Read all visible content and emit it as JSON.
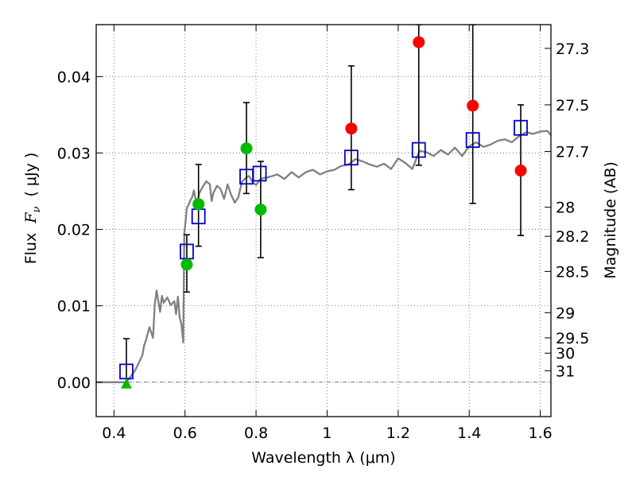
{
  "chart_data": {
    "type": "scatter",
    "xlabel": "Wavelength  λ (μm)",
    "ylabel": "Flux  Fν  ( μJy )",
    "ylabel_parts": {
      "prefix": "Flux  ",
      "symbol": "F",
      "subscript": "ν",
      "suffix": "  ( μJy )"
    },
    "y2label": "Magnitude (AB)",
    "xlim": [
      0.35,
      1.63
    ],
    "ylim": [
      -0.0045,
      0.0468
    ],
    "grid": true,
    "x_ticks": [
      0.4,
      0.6,
      0.8,
      1.0,
      1.2,
      1.4,
      1.6
    ],
    "x_tick_labels": [
      "0.4",
      "0.6",
      "0.8",
      "1",
      "1.2",
      "1.4",
      "1.6"
    ],
    "y_ticks": [
      0.0,
      0.01,
      0.02,
      0.03,
      0.04
    ],
    "y_tick_labels": [
      "0.00",
      "0.01",
      "0.02",
      "0.03",
      "0.04"
    ],
    "magnitude_ticks": [
      {
        "label": "27.3",
        "flux": 0.0437
      },
      {
        "label": "27.5",
        "flux": 0.0363
      },
      {
        "label": "27.7",
        "flux": 0.0302
      },
      {
        "label": "28",
        "flux": 0.0229
      },
      {
        "label": "28.2",
        "flux": 0.0191
      },
      {
        "label": "28.5",
        "flux": 0.0145
      },
      {
        "label": "29",
        "flux": 0.0091
      },
      {
        "label": "29.5",
        "flux": 0.0058
      },
      {
        "label": "30",
        "flux": 0.0038
      },
      {
        "label": "31",
        "flux": 0.0015
      }
    ],
    "colors": {
      "template": "#808080",
      "model": "#0000cc",
      "green": "#00bb00",
      "red": "#ff0000",
      "errorbar": "#000000",
      "grid": "#666666"
    },
    "series": [
      {
        "kind": "template_line",
        "x": [
          0.35,
          0.4,
          0.43,
          0.44,
          0.46,
          0.48,
          0.485,
          0.49,
          0.5,
          0.51,
          0.515,
          0.52,
          0.53,
          0.535,
          0.54,
          0.55,
          0.56,
          0.57,
          0.575,
          0.58,
          0.585,
          0.59,
          0.595,
          0.598,
          0.602,
          0.605,
          0.61,
          0.615,
          0.62,
          0.625,
          0.63,
          0.635,
          0.64,
          0.65,
          0.66,
          0.67,
          0.675,
          0.68,
          0.69,
          0.7,
          0.71,
          0.72,
          0.73,
          0.74,
          0.75,
          0.76,
          0.77,
          0.78,
          0.79,
          0.8,
          0.81,
          0.82,
          0.84,
          0.86,
          0.88,
          0.9,
          0.92,
          0.94,
          0.96,
          0.98,
          1.0,
          1.02,
          1.04,
          1.06,
          1.08,
          1.1,
          1.12,
          1.14,
          1.16,
          1.18,
          1.2,
          1.22,
          1.24,
          1.26,
          1.28,
          1.3,
          1.32,
          1.34,
          1.36,
          1.38,
          1.4,
          1.42,
          1.44,
          1.46,
          1.48,
          1.5,
          1.52,
          1.54,
          1.56,
          1.58,
          1.6,
          1.62,
          1.63
        ],
        "y": [
          0.0,
          0.0,
          0.0,
          0.0003,
          0.0016,
          0.0035,
          0.0048,
          0.0055,
          0.0072,
          0.0058,
          0.0102,
          0.012,
          0.0092,
          0.0113,
          0.0104,
          0.0111,
          0.0101,
          0.0106,
          0.0089,
          0.0112,
          0.0085,
          0.0075,
          0.0052,
          0.0195,
          0.0212,
          0.0228,
          0.0232,
          0.0238,
          0.0242,
          0.0251,
          0.0239,
          0.0235,
          0.0247,
          0.0256,
          0.0263,
          0.0259,
          0.0237,
          0.0248,
          0.0257,
          0.0253,
          0.024,
          0.0259,
          0.0245,
          0.0235,
          0.0242,
          0.0262,
          0.0267,
          0.027,
          0.0262,
          0.0258,
          0.0265,
          0.0267,
          0.0269,
          0.0272,
          0.0266,
          0.0275,
          0.0268,
          0.0275,
          0.0278,
          0.0272,
          0.0276,
          0.0278,
          0.0283,
          0.0285,
          0.0292,
          0.0289,
          0.0285,
          0.0282,
          0.0286,
          0.0279,
          0.0293,
          0.0287,
          0.0279,
          0.0303,
          0.0301,
          0.0296,
          0.0304,
          0.0298,
          0.0307,
          0.0296,
          0.0309,
          0.0314,
          0.0308,
          0.0311,
          0.0316,
          0.0318,
          0.0314,
          0.0322,
          0.0327,
          0.0325,
          0.0328,
          0.0329,
          0.0323
        ]
      },
      {
        "kind": "model_squares",
        "x": [
          0.435,
          0.605,
          0.638,
          0.773,
          0.81,
          1.068,
          1.258,
          1.41,
          1.545
        ],
        "y": [
          0.0014,
          0.0171,
          0.0217,
          0.0269,
          0.0273,
          0.0294,
          0.0304,
          0.0317,
          0.0333
        ]
      },
      {
        "kind": "green_points",
        "x": [
          0.605,
          0.638,
          0.773,
          0.813
        ],
        "y": [
          0.0154,
          0.0233,
          0.0306,
          0.0226
        ]
      },
      {
        "kind": "green_upper_limit",
        "x": [
          0.435
        ],
        "y": [
          -0.0002
        ]
      },
      {
        "kind": "red_points",
        "x": [
          1.068,
          1.258,
          1.41,
          1.545
        ],
        "y": [
          0.0332,
          0.0445,
          0.0362,
          0.0277
        ]
      },
      {
        "kind": "errorbars",
        "x": [
          0.435,
          0.605,
          0.638,
          0.773,
          0.813,
          1.068,
          1.258,
          1.41,
          1.545
        ],
        "low": [
          -0.0003,
          0.0118,
          0.0178,
          0.0247,
          0.0163,
          0.0252,
          0.0284,
          0.0234,
          0.0192
        ],
        "high": [
          0.0057,
          0.0193,
          0.0285,
          0.0366,
          0.0289,
          0.0414,
          0.0468,
          0.0468,
          0.0363
        ]
      }
    ]
  }
}
